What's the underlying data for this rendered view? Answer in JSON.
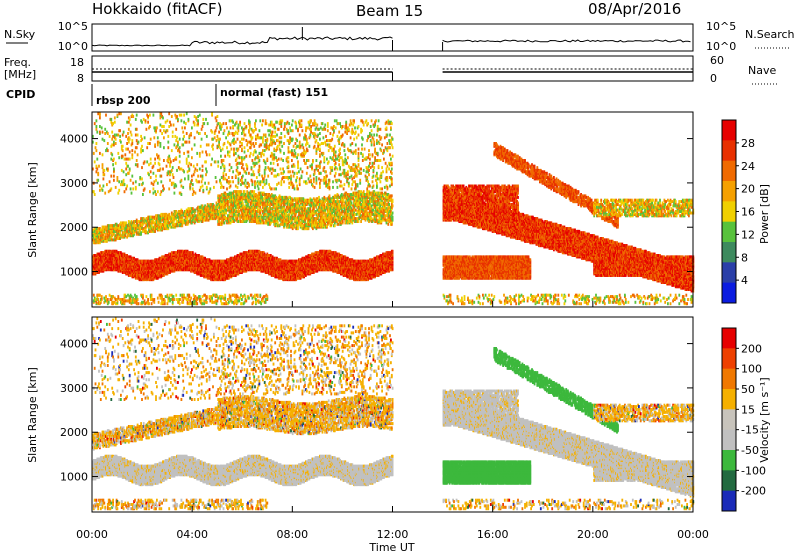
{
  "header": {
    "station": "Hokkaido (fitACF)",
    "beam": "Beam 15",
    "date": "08/Apr/2016"
  },
  "labels": {
    "nsky": "N.Sky",
    "nsearch": "N.Search",
    "freq": "Freq.",
    "freq_unit": "[MHz]",
    "nave": "Nave",
    "cpid": "CPID",
    "slant_range": "Slant Range [km]",
    "power": "Power [dB]",
    "velocity": "Velocity [m s⁻¹]",
    "time_axis": "Time UT"
  },
  "cpid_segments": [
    {
      "start_hour": 0,
      "end_hour": 5,
      "label": "rbsp 200"
    },
    {
      "start_hour": 5,
      "end_hour": 24,
      "label": "normal (fast) 151"
    }
  ],
  "noise_panel": {
    "left_ticks": [
      "10^5",
      "10^0"
    ],
    "right_ticks": [
      "10^5",
      "10^0"
    ]
  },
  "freq_panel": {
    "left_ticks": [
      "18",
      "8"
    ],
    "right_ticks": [
      "60",
      "0"
    ]
  },
  "colors": {
    "power_scale": [
      "#0b1ce0",
      "#2a3fa8",
      "#3d8a5e",
      "#58c23c",
      "#f0d000",
      "#f5a000",
      "#f06a00",
      "#e83000",
      "#e60000"
    ],
    "velocity_scale": [
      "#1a2bb8",
      "#226a40",
      "#3cb83c",
      "#c0c0c0",
      "#c8c4bc",
      "#f5b000",
      "#f07800",
      "#ee4000",
      "#e60000"
    ]
  },
  "chart_data": [
    {
      "type": "heatmap",
      "name_label": "power",
      "xlabel": "Time UT",
      "ylabel": "Slant Range [km]",
      "x_ticks": [
        "00:00",
        "04:00",
        "08:00",
        "12:00",
        "16:00",
        "20:00",
        "00:00"
      ],
      "x_tick_hours": [
        0,
        4,
        8,
        12,
        16,
        20,
        24
      ],
      "xlim": [
        0,
        24
      ],
      "ylim": [
        200,
        4600
      ],
      "y_ticks": [
        1000,
        2000,
        3000,
        4000
      ],
      "data_gap_hours": [
        12,
        14
      ],
      "colorbar": {
        "label": "Power [dB]",
        "ticks": [
          4,
          8,
          12,
          16,
          20,
          24,
          28
        ],
        "range": [
          0,
          32
        ]
      },
      "features": [
        {
          "t0": 0,
          "t1": 12,
          "r_center": 1100,
          "r_width": 350,
          "power": 26,
          "desc": "E-region echo band"
        },
        {
          "t0": 0,
          "t1": 5,
          "r_center": 1900,
          "r_width": 400,
          "power": 14
        },
        {
          "t0": 5,
          "t1": 12,
          "r_center": 2300,
          "r_width": 500,
          "power": 22
        },
        {
          "t0": 14,
          "t1": 24,
          "r_center": 2100,
          "r_width": 600,
          "power": 28
        },
        {
          "t0": 14,
          "t1": 17,
          "r_center": 1000,
          "r_width": 300,
          "power": 22
        }
      ]
    },
    {
      "type": "heatmap",
      "name_label": "velocity",
      "xlabel": "Time UT",
      "ylabel": "Slant Range [km]",
      "x_ticks": [
        "00:00",
        "04:00",
        "08:00",
        "12:00",
        "16:00",
        "20:00",
        "00:00"
      ],
      "x_tick_hours": [
        0,
        4,
        8,
        12,
        16,
        20,
        24
      ],
      "xlim": [
        0,
        24
      ],
      "ylim": [
        200,
        4600
      ],
      "y_ticks": [
        1000,
        2000,
        3000,
        4000
      ],
      "data_gap_hours": [
        12,
        14
      ],
      "colorbar": {
        "label": "Velocity [m s⁻¹]",
        "ticks": [
          200,
          100,
          50,
          15,
          -15,
          -50,
          -100,
          -200
        ]
      }
    }
  ]
}
